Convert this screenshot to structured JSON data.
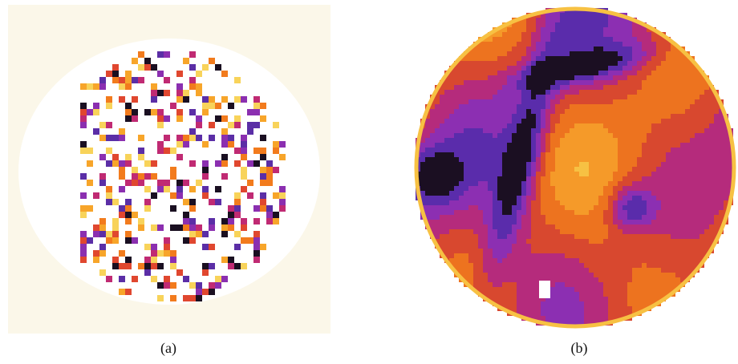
{
  "figure": {
    "panels": [
      {
        "caption": "(a)",
        "kind": "sparse pixel samples inside circular mask",
        "palette": [
          "#1a0f21",
          "#5b2ea6",
          "#8b2fb0",
          "#c02a73",
          "#e0472f",
          "#f27b1d",
          "#f7a52a",
          "#f8d35a"
        ]
      },
      {
        "caption": "(b)",
        "kind": "dense interpolated field inside circular mask",
        "palette": [
          "#1b0f22",
          "#5a2cab",
          "#8c2fb2",
          "#b52b7c",
          "#d8482f",
          "#ed731f",
          "#f59a29",
          "#f7c143"
        ]
      }
    ]
  }
}
